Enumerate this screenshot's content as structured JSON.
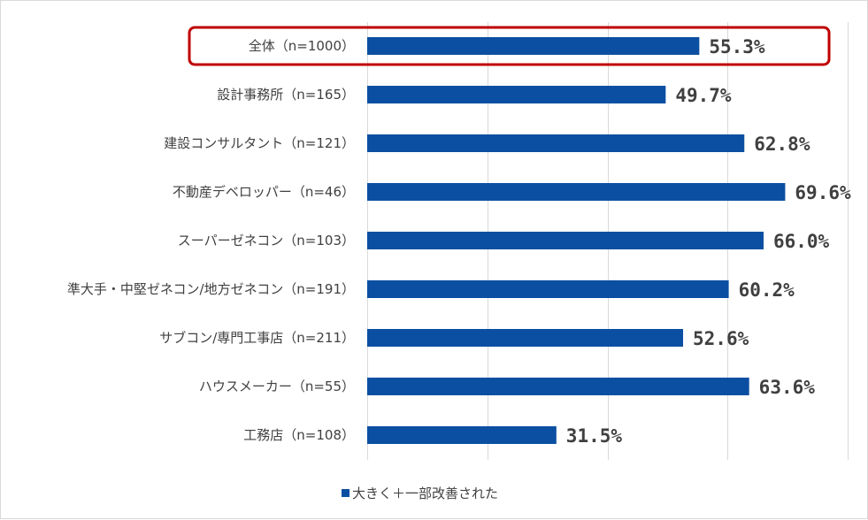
{
  "chart_data": {
    "type": "bar",
    "orientation": "horizontal",
    "title": "",
    "categories": [
      "全体（n=1000）",
      "設計事務所（n=165）",
      "建設コンサルタント（n=121）",
      "不動産デベロッパー（n=46）",
      "スーパーゼネコン（n=103）",
      "準大手・中堅ゼネコン/地方ゼネコン（n=191）",
      "サブコン/専門工事店（n=211）",
      "ハウスメーカー（n=55）",
      "工務店（n=108）"
    ],
    "series": [
      {
        "name": "大きく＋一部改善された",
        "color": "#0b4fa2",
        "values": [
          55.3,
          49.7,
          62.8,
          69.6,
          66.0,
          60.2,
          52.6,
          63.6,
          31.5
        ],
        "labels": [
          "55.3%",
          "49.7%",
          "62.8%",
          "69.6%",
          "66.0%",
          "60.2%",
          "52.6%",
          "63.6%",
          "31.5%"
        ]
      }
    ],
    "xlim": [
      0,
      80
    ],
    "grid": true,
    "xlabel": "",
    "ylabel": "",
    "legend_position": "bottom",
    "highlighted_category": "全体（n=1000）",
    "highlight_color": "#c00000"
  }
}
